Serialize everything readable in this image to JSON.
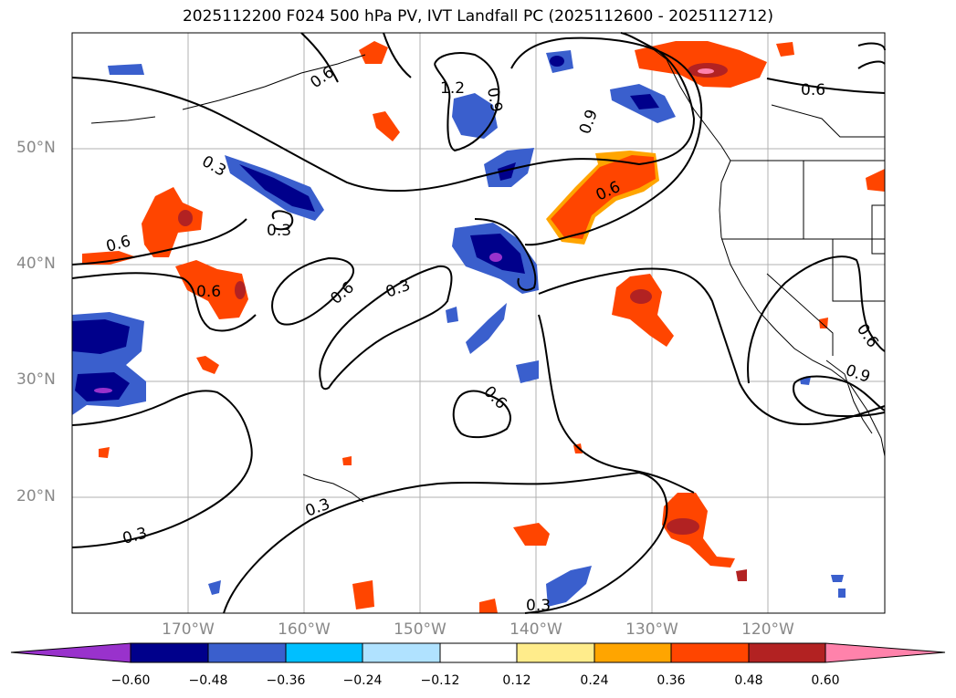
{
  "title": "2025112200 F024 500 hPa PV, IVT Landfall PC (2025112600 - 2025112712)",
  "lat_labels": [
    "50°N",
    "40°N",
    "30°N",
    "20°N"
  ],
  "lon_labels": [
    "170°W",
    "160°W",
    "150°W",
    "140°W",
    "130°W",
    "120°W"
  ],
  "contour_labels": [
    "0.6",
    "0.6",
    "0.9",
    "0.9",
    "1.2",
    "0.6",
    "0.3",
    "0.3",
    "0.6",
    "0.6",
    "0.6",
    "0.3",
    "0.6",
    "0.6",
    "0.9",
    "0.3",
    "0.3",
    "0.3"
  ],
  "colorbar": {
    "ticks": [
      "−0.60",
      "−0.48",
      "−0.36",
      "−0.24",
      "−0.12",
      "0.12",
      "0.24",
      "0.36",
      "0.48",
      "0.60"
    ],
    "colors": [
      "#9932cc",
      "#00008b",
      "#3a5fcd",
      "#00bfff",
      "#b0e2ff",
      "#ffffff",
      "#ffec8b",
      "#ffa500",
      "#ff4500",
      "#b22222",
      "#ff82ab"
    ]
  }
}
